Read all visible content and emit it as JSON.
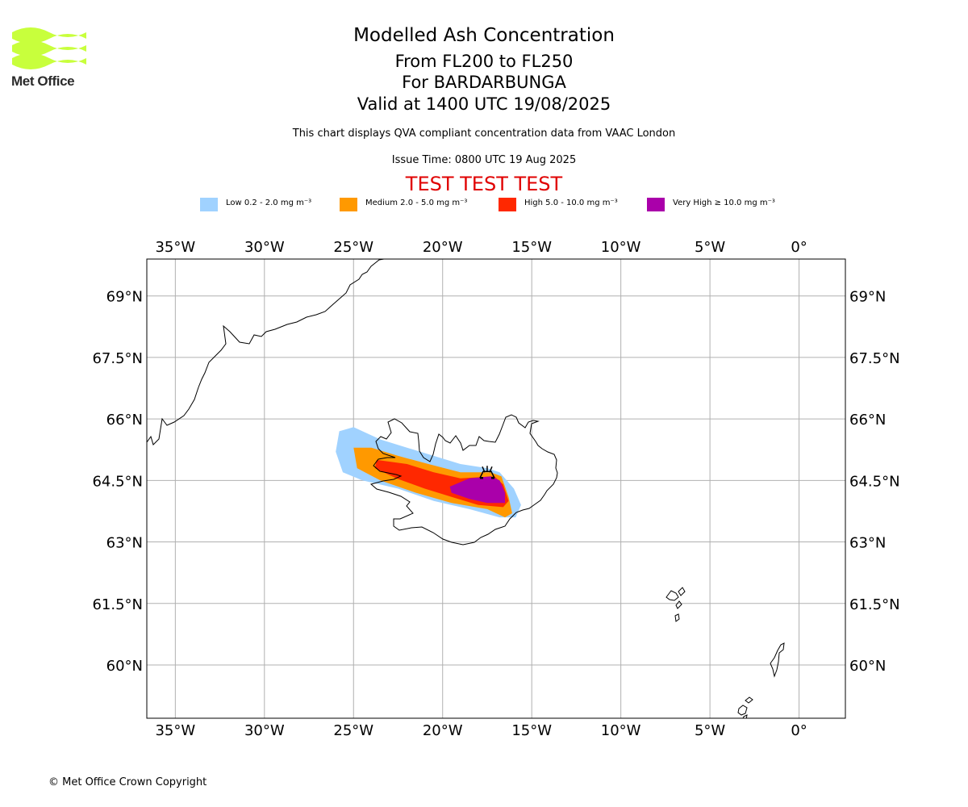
{
  "logo": {
    "text": "Met Office",
    "color": "#c8ff3c"
  },
  "title": {
    "line1": "Modelled Ash Concentration",
    "line2": "From FL200 to FL250",
    "line3": "For BARDARBUNGA",
    "line4": "Valid at 1400 UTC 19/08/2025"
  },
  "description": "This chart displays QVA compliant concentration data from VAAC London",
  "issue_time": "Issue Time: 0800 UTC 19 Aug 2025",
  "test_banner": "TEST TEST TEST",
  "legend": [
    {
      "label": "Low 0.2 - 2.0 mg m⁻³",
      "color": "#a0d2ff"
    },
    {
      "label": "Medium 2.0 - 5.0 mg m⁻³",
      "color": "#ff9900"
    },
    {
      "label": "High 5.0 - 10.0 mg m⁻³",
      "color": "#ff2800"
    },
    {
      "label": "Very High  ≥  10.0 mg m⁻³",
      "color": "#aa00aa"
    }
  ],
  "map": {
    "lon_range": [
      -36.6,
      2.6
    ],
    "lat_range": [
      58.7,
      69.9
    ],
    "lon_ticks": [
      {
        "value": -35,
        "label": "35°W"
      },
      {
        "value": -30,
        "label": "30°W"
      },
      {
        "value": -25,
        "label": "25°W"
      },
      {
        "value": -20,
        "label": "20°W"
      },
      {
        "value": -15,
        "label": "15°W"
      },
      {
        "value": -10,
        "label": "10°W"
      },
      {
        "value": -5,
        "label": "5°W"
      },
      {
        "value": 0,
        "label": "0°"
      }
    ],
    "lat_ticks": [
      {
        "value": 69,
        "label": "69°N"
      },
      {
        "value": 67.5,
        "label": "67.5°N"
      },
      {
        "value": 66,
        "label": "66°N"
      },
      {
        "value": 64.5,
        "label": "64.5°N"
      },
      {
        "value": 63,
        "label": "63°N"
      },
      {
        "value": 61.5,
        "label": "61.5°N"
      },
      {
        "value": 60,
        "label": "60°N"
      }
    ],
    "grid": true,
    "volcano": {
      "name": "BARDARBUNGA",
      "lon": -17.5,
      "lat": 64.6
    },
    "ash_contours": [
      {
        "level": "low",
        "color": "#a0d2ff",
        "points": [
          [
            -25.8,
            65.7
          ],
          [
            -25.0,
            65.8
          ],
          [
            -23.5,
            65.5
          ],
          [
            -22.0,
            65.3
          ],
          [
            -20.5,
            65.1
          ],
          [
            -19.0,
            64.9
          ],
          [
            -17.5,
            64.8
          ],
          [
            -16.8,
            64.7
          ],
          [
            -16.0,
            64.3
          ],
          [
            -15.6,
            63.9
          ],
          [
            -15.9,
            63.6
          ],
          [
            -16.8,
            63.6
          ],
          [
            -18.5,
            63.8
          ],
          [
            -20.5,
            64.0
          ],
          [
            -22.5,
            64.3
          ],
          [
            -24.5,
            64.5
          ],
          [
            -25.6,
            64.7
          ],
          [
            -26.0,
            65.2
          ]
        ]
      },
      {
        "level": "medium",
        "color": "#ff9900",
        "points": [
          [
            -25.0,
            65.3
          ],
          [
            -24.0,
            65.3
          ],
          [
            -22.5,
            65.1
          ],
          [
            -20.8,
            64.9
          ],
          [
            -19.0,
            64.7
          ],
          [
            -17.3,
            64.7
          ],
          [
            -16.7,
            64.6
          ],
          [
            -16.3,
            64.1
          ],
          [
            -16.1,
            63.7
          ],
          [
            -16.5,
            63.6
          ],
          [
            -17.5,
            63.8
          ],
          [
            -19.5,
            63.95
          ],
          [
            -21.5,
            64.2
          ],
          [
            -23.5,
            64.5
          ],
          [
            -24.8,
            64.8
          ]
        ]
      },
      {
        "level": "high",
        "color": "#ff2800",
        "points": [
          [
            -23.7,
            65.0
          ],
          [
            -22.0,
            64.9
          ],
          [
            -20.5,
            64.7
          ],
          [
            -19.0,
            64.55
          ],
          [
            -17.1,
            64.6
          ],
          [
            -16.6,
            64.4
          ],
          [
            -16.3,
            64.0
          ],
          [
            -16.6,
            63.85
          ],
          [
            -18.0,
            63.9
          ],
          [
            -19.5,
            64.1
          ],
          [
            -21.0,
            64.3
          ],
          [
            -22.6,
            64.55
          ],
          [
            -23.8,
            64.8
          ]
        ]
      },
      {
        "level": "very_high",
        "color": "#aa00aa",
        "points": [
          [
            -19.6,
            64.35
          ],
          [
            -18.5,
            64.55
          ],
          [
            -17.3,
            64.6
          ],
          [
            -16.8,
            64.5
          ],
          [
            -16.5,
            64.2
          ],
          [
            -16.5,
            63.95
          ],
          [
            -17.5,
            63.95
          ],
          [
            -18.5,
            64.05
          ],
          [
            -19.5,
            64.2
          ]
        ]
      }
    ]
  },
  "copyright": "© Met Office Crown Copyright"
}
